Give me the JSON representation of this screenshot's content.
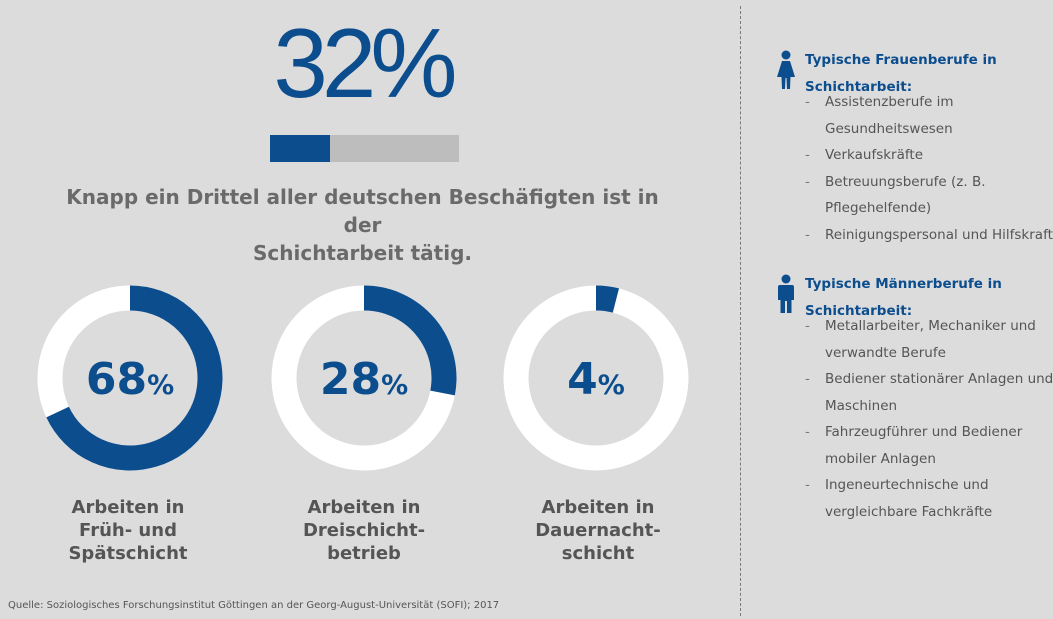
{
  "headline": {
    "value": "32%",
    "progress_fraction": 0.32
  },
  "subtitle_line1": "Knapp ein Drittel aller deutschen Beschäfigten ist in der",
  "subtitle_line2": "Schichtarbeit tätig.",
  "chart_data": {
    "type": "pie",
    "subtype": "donut",
    "colors": {
      "filled": "#0c4d8e",
      "remainder": "#ffffff",
      "progress_track": "#bdbdbd"
    },
    "items": [
      {
        "value": 68,
        "num": "68",
        "unit": "%",
        "label_lines": [
          "Arbeiten in",
          "Früh- und",
          "Spätschicht"
        ]
      },
      {
        "value": 28,
        "num": "28",
        "unit": "%",
        "label_lines": [
          "Arbeiten in",
          "Dreischicht-",
          "betrieb"
        ]
      },
      {
        "value": 4,
        "num": "4",
        "unit": "%",
        "label_lines": [
          "Arbeiten in",
          "Dauernacht-",
          "schicht"
        ]
      }
    ]
  },
  "women": {
    "icon": "female-person-icon",
    "title_line1": "Typische Frauenberufe in",
    "title_line2": "Schichtarbeit:",
    "items": [
      "Assistenzberufe im Gesundheitswesen",
      "Verkaufskräfte",
      "Betreuungsberufe (z. B. Pflegehelfende)",
      "Reinigungspersonal und Hilfskraft"
    ]
  },
  "men": {
    "icon": "male-person-icon",
    "title_line1": "Typische Männerberufe in",
    "title_line2": "Schichtarbeit:",
    "items": [
      "Metallarbeiter, Mechaniker und verwandte Berufe",
      "Bediener stationärer Anlagen und Maschinen",
      "Fahrzeugführer und Bediener mobiler Anlagen",
      "Ingeneurtechnische und vergleichbare Fachkräfte"
    ]
  },
  "source": "Quelle: Soziologisches Forschungsinstitut Göttingen an der Georg-August-Universität (SOFI); 2017"
}
